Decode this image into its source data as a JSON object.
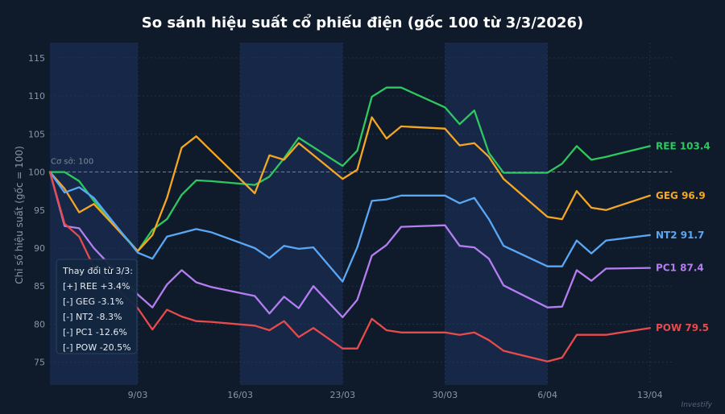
{
  "chart_data": {
    "type": "line",
    "title": "So sánh hiệu suất cổ phiếu điện (gốc 100 từ 3/3/2026)",
    "ylabel": "Chỉ số hiệu suất (gốc = 100)",
    "ylim": [
      72,
      117
    ],
    "yticks": [
      75,
      80,
      85,
      90,
      95,
      100,
      105,
      110,
      115
    ],
    "xlim": [
      0,
      42.5
    ],
    "xticks": [
      {
        "x": 6,
        "label": "9/03"
      },
      {
        "x": 13,
        "label": "16/03"
      },
      {
        "x": 20,
        "label": "23/03"
      },
      {
        "x": 27,
        "label": "30/03"
      },
      {
        "x": 34,
        "label": "6/04"
      },
      {
        "x": 41,
        "label": "13/04"
      }
    ],
    "baseline": {
      "value": 100,
      "label": "Cơ sở: 100"
    },
    "shaded_weeks": [
      [
        0,
        6
      ],
      [
        13,
        20
      ],
      [
        27,
        34
      ]
    ],
    "summary_title": "Thay đổi từ 3/3:",
    "summary_lines": [
      "[+] REE  +3.4%",
      "[-] GEG  -3.1%",
      "[-] NT2  -8.3%",
      "[-] PC1  -12.6%",
      "[-] POW  -20.5%"
    ],
    "watermark": "Investify",
    "series": [
      {
        "name": "REE",
        "end_label": "103.4",
        "color": "#2fc85f",
        "x": [
          0,
          1,
          2,
          3,
          6,
          7,
          8,
          9,
          10,
          11,
          14,
          15,
          16,
          17,
          20,
          21,
          22,
          23,
          24,
          27,
          28,
          29,
          30,
          31,
          34,
          35,
          36,
          37,
          38,
          41
        ],
        "y": [
          100,
          100,
          98.8,
          96.2,
          89.6,
          92.4,
          93.8,
          97,
          98.9,
          98.8,
          98.3,
          99.4,
          101.8,
          104.5,
          100.8,
          102.8,
          109.9,
          111.1,
          111.1,
          108.5,
          106.3,
          108.1,
          102.5,
          99.9,
          99.9,
          101.1,
          103.4,
          101.6,
          102,
          103.4
        ]
      },
      {
        "name": "GEG",
        "end_label": "96.9",
        "color": "#f5a623",
        "x": [
          0,
          1,
          2,
          3,
          6,
          7,
          8,
          9,
          10,
          11,
          14,
          15,
          16,
          17,
          20,
          21,
          22,
          23,
          24,
          27,
          28,
          29,
          30,
          31,
          34,
          35,
          36,
          37,
          38,
          41
        ],
        "y": [
          100,
          97.8,
          94.7,
          95.8,
          89.6,
          91.7,
          96.6,
          103.2,
          104.7,
          102.8,
          97.2,
          102.2,
          101.6,
          103.8,
          99.1,
          100.3,
          107.2,
          104.4,
          106,
          105.7,
          103.5,
          103.8,
          102,
          99.1,
          94.1,
          93.8,
          97.5,
          95.3,
          95,
          96.9
        ]
      },
      {
        "name": "NT2",
        "end_label": "91.7",
        "color": "#5aa7f5",
        "x": [
          0,
          1,
          2,
          3,
          6,
          7,
          8,
          9,
          10,
          11,
          14,
          15,
          16,
          17,
          18,
          20,
          21,
          22,
          23,
          24,
          27,
          28,
          29,
          30,
          31,
          34,
          35,
          36,
          37,
          38,
          41
        ],
        "y": [
          100,
          97.3,
          98,
          96.6,
          89.4,
          88.6,
          91.5,
          92,
          92.5,
          92.1,
          90,
          88.7,
          90.3,
          89.9,
          90.1,
          85.6,
          90.1,
          96.2,
          96.4,
          96.9,
          96.9,
          95.9,
          96.6,
          93.8,
          90.3,
          87.6,
          87.6,
          91,
          89.3,
          91,
          91.7
        ]
      },
      {
        "name": "PC1",
        "end_label": "87.4",
        "color": "#b47ef0",
        "x": [
          0,
          1,
          2,
          3,
          6,
          7,
          8,
          9,
          10,
          11,
          14,
          15,
          16,
          17,
          18,
          20,
          21,
          22,
          23,
          24,
          27,
          28,
          29,
          30,
          31,
          34,
          35,
          36,
          37,
          38,
          41
        ],
        "y": [
          100,
          92.9,
          92.6,
          90,
          83.9,
          82.2,
          85.2,
          87.1,
          85.5,
          84.9,
          83.7,
          81.4,
          83.6,
          82.1,
          85,
          80.9,
          83.2,
          89,
          90.4,
          92.8,
          93,
          90.3,
          90.1,
          88.6,
          85.1,
          82.2,
          82.3,
          87.1,
          85.7,
          87.3,
          87.4
        ]
      },
      {
        "name": "POW",
        "end_label": "79.5",
        "color": "#e84b4b",
        "x": [
          0,
          1,
          2,
          3,
          6,
          7,
          8,
          9,
          10,
          11,
          14,
          15,
          16,
          17,
          18,
          20,
          21,
          22,
          23,
          24,
          27,
          28,
          29,
          30,
          31,
          34,
          35,
          36,
          37,
          38,
          41
        ],
        "y": [
          100,
          93.2,
          91.5,
          87.5,
          82.1,
          79.3,
          81.9,
          81,
          80.4,
          80.3,
          79.8,
          79.2,
          80.4,
          78.3,
          79.5,
          76.8,
          76.8,
          80.7,
          79.2,
          78.9,
          78.9,
          78.6,
          78.9,
          77.9,
          76.5,
          75.1,
          75.6,
          78.6,
          78.6,
          78.6,
          79.5
        ]
      }
    ]
  }
}
